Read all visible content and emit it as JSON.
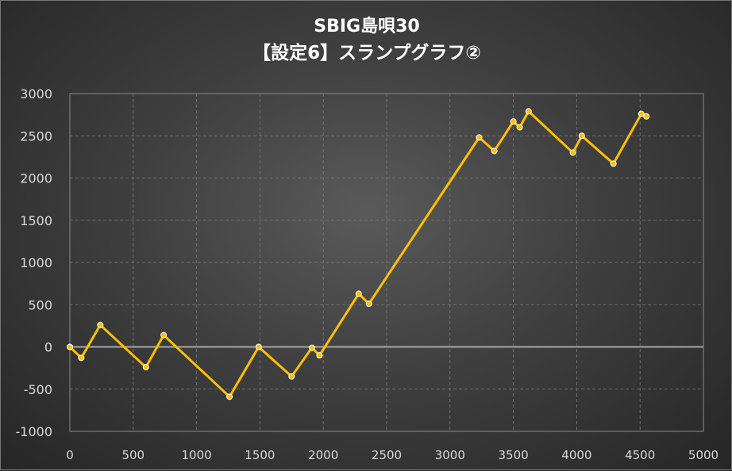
{
  "chart_data": {
    "type": "line",
    "title": "SBIG島唄30",
    "subtitle": "【設定6】スランプグラフ②",
    "xlabel": "",
    "ylabel": "",
    "xlim": [
      0,
      5000
    ],
    "ylim": [
      -1000,
      3000
    ],
    "x_ticks": [
      0,
      500,
      1000,
      1500,
      2000,
      2500,
      3000,
      3500,
      4000,
      4500,
      5000
    ],
    "y_ticks": [
      3000,
      2500,
      2000,
      1500,
      1000,
      500,
      0,
      -500,
      -1000
    ],
    "grid": true,
    "legend": "none",
    "series": [
      {
        "color": "#FFC000",
        "x": [
          0,
          90,
          240,
          600,
          740,
          1260,
          1490,
          1750,
          1910,
          1970,
          2280,
          2360,
          3230,
          3350,
          3500,
          3550,
          3620,
          3970,
          4040,
          4290,
          4510,
          4550
        ],
        "y": [
          0,
          -130,
          260,
          -240,
          140,
          -590,
          0,
          -350,
          -10,
          -100,
          630,
          510,
          2480,
          2320,
          2670,
          2600,
          2790,
          2300,
          2500,
          2170,
          2760,
          2730
        ]
      }
    ]
  }
}
